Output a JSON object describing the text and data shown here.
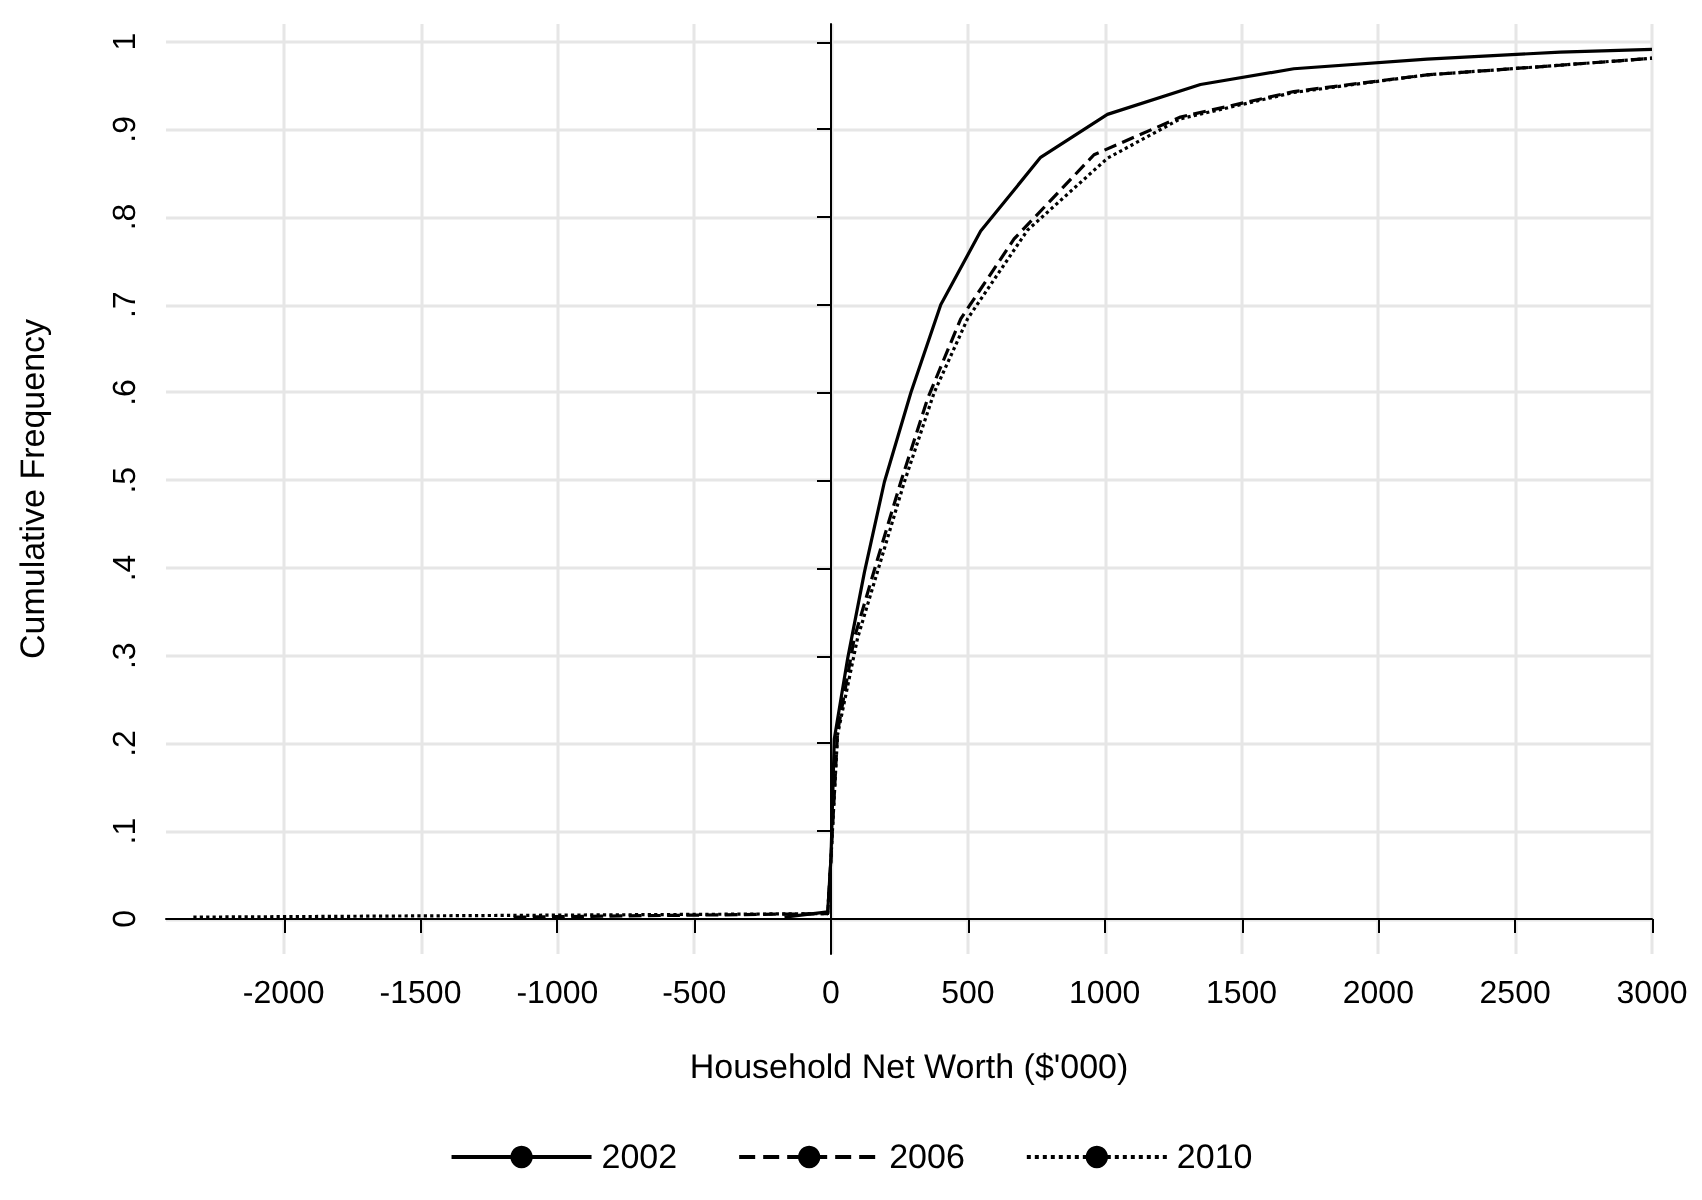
{
  "chart_data": {
    "type": "line",
    "xlabel": "Household Net Worth ($'000)",
    "ylabel": "Cumulative Frequency",
    "xlim": [
      -2430,
      3000
    ],
    "xticks": [
      -2000,
      -1500,
      -1000,
      -500,
      0,
      500,
      1000,
      1500,
      2000,
      2500,
      3000
    ],
    "ylim": [
      -0.04,
      1.02
    ],
    "yticks": [
      {
        "value": 0,
        "label": "0"
      },
      {
        "value": 0.1,
        "label": ".1"
      },
      {
        "value": 0.2,
        "label": ".2"
      },
      {
        "value": 0.3,
        "label": ".3"
      },
      {
        "value": 0.4,
        "label": ".4"
      },
      {
        "value": 0.5,
        "label": ".5"
      },
      {
        "value": 0.6,
        "label": ".6"
      },
      {
        "value": 0.7,
        "label": ".7"
      },
      {
        "value": 0.8,
        "label": ".8"
      },
      {
        "value": 0.9,
        "label": ".9"
      },
      {
        "value": 1,
        "label": "1"
      }
    ],
    "grid": true,
    "legend": "bottom",
    "marker": "none",
    "series": [
      {
        "name": "2002",
        "color": "#000000",
        "line_style": "solid",
        "x": [
          -170,
          -12,
          0,
          12,
          61,
          122,
          195,
          292,
          401,
          547,
          766,
          1010,
          1350,
          1691,
          2178,
          2664,
          3000
        ],
        "values": [
          0.002,
          0.008,
          0.07,
          0.205,
          0.297,
          0.395,
          0.498,
          0.6,
          0.7,
          0.784,
          0.868,
          0.917,
          0.951,
          0.969,
          0.98,
          0.988,
          0.991
        ]
      },
      {
        "name": "2006",
        "color": "#000000",
        "line_style": "dashed",
        "x": [
          -1160,
          -12,
          0,
          24,
          85,
          170,
          255,
          353,
          474,
          669,
          961,
          1277,
          1691,
          2178,
          2664,
          3000
        ],
        "values": [
          0.002,
          0.006,
          0.07,
          0.213,
          0.32,
          0.41,
          0.498,
          0.593,
          0.684,
          0.775,
          0.871,
          0.914,
          0.943,
          0.962,
          0.973,
          0.981
        ]
      },
      {
        "name": "2010",
        "color": "#000000",
        "line_style": "dotted",
        "x": [
          -2330,
          -12,
          0,
          24,
          97,
          268,
          377,
          499,
          718,
          1010,
          1277,
          1691,
          2178,
          2664,
          3000
        ],
        "values": [
          0.002,
          0.006,
          0.07,
          0.21,
          0.32,
          0.498,
          0.6,
          0.684,
          0.785,
          0.867,
          0.912,
          0.942,
          0.962,
          0.973,
          0.981
        ]
      }
    ]
  }
}
